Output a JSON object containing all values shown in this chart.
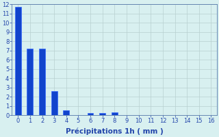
{
  "categories": [
    0,
    1,
    2,
    3,
    4,
    5,
    6,
    7,
    8,
    9,
    10,
    11,
    12,
    13,
    14,
    15,
    16
  ],
  "values": [
    11.7,
    7.2,
    7.2,
    2.6,
    0.5,
    0.0,
    0.2,
    0.2,
    0.3,
    0.0,
    0.0,
    0.0,
    0.0,
    0.0,
    0.0,
    0.0,
    0.0
  ],
  "bar_color": "#1144CC",
  "bar_edge_color": "#3366FF",
  "background_color": "#D8F0F0",
  "grid_color": "#B8D0D0",
  "xlabel": "Précipitations 1h ( mm )",
  "ylim": [
    0,
    12
  ],
  "xlim": [
    -0.5,
    16.5
  ],
  "yticks": [
    0,
    1,
    2,
    3,
    4,
    5,
    6,
    7,
    8,
    9,
    10,
    11,
    12
  ],
  "xticks": [
    0,
    1,
    2,
    3,
    4,
    5,
    6,
    7,
    8,
    9,
    10,
    11,
    12,
    13,
    14,
    15,
    16
  ],
  "bar_width": 0.5,
  "xlabel_fontsize": 7.5,
  "tick_fontsize": 6,
  "axis_color": "#5577AA",
  "text_color": "#2244AA"
}
